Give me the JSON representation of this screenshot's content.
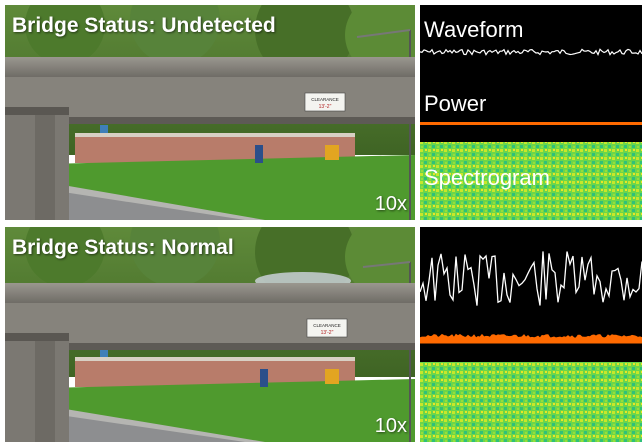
{
  "rows": [
    {
      "status_text": "Bridge Status: Undetected",
      "speed_label": "10x",
      "clearance_sign": "CLEARANCE",
      "clearance_value": "13'-2\"",
      "car_present": false,
      "waveform_label": "Waveform",
      "power_label": "Power",
      "spectrogram_label": "Spectrogram",
      "waveform_amplitude": 0.12,
      "power_level": 0.1
    },
    {
      "status_text": "Bridge Status: Normal",
      "speed_label": "10x",
      "clearance_sign": "CLEARANCE",
      "clearance_value": "13'-2\"",
      "car_present": true,
      "waveform_label": "",
      "power_label": "",
      "spectrogram_label": "",
      "waveform_amplitude": 1.0,
      "power_level": 0.35
    }
  ],
  "colors": {
    "waveform": "#ffffff",
    "power": "#ff6a00",
    "spectrogram_low": "#1fd08a",
    "spectrogram_high": "#ffe600",
    "signal_bg": "#000000"
  }
}
